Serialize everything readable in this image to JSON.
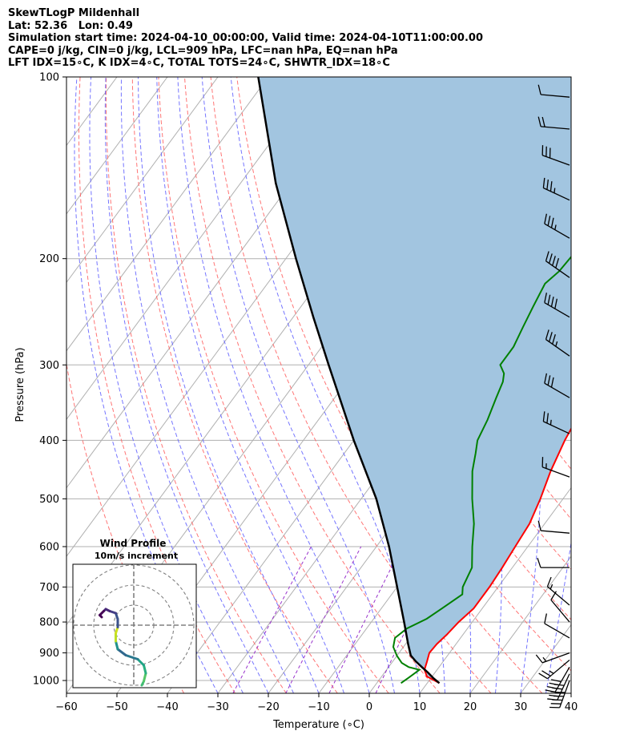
{
  "title_lines": [
    "SkewTLogP Mildenhall",
    "Lat: 52.36   Lon: 0.49",
    "Simulation start time: 2024-04-10_00:00:00, Valid time: 2024-04-10T11:00:00.00",
    "CAPE=0 j/kg, CIN=0 j/kg, LCL=909 hPa, LFC=nan hPa, EQ=nan hPa",
    "LFT IDX=15∘C, K IDX=4∘C, TOTAL TOTS=24∘C, SHWTR_IDX=18∘C"
  ],
  "chart_data": {
    "type": "line",
    "subtype": "skew-T log-P",
    "xlabel": "Temperature (∘C)",
    "ylabel": "Pressure (hPa)",
    "xlim": [
      -60,
      40
    ],
    "ylim": [
      1050,
      100
    ],
    "y_scale": "log",
    "x_ticks": [
      "−60",
      "−50",
      "−40",
      "−30",
      "−20",
      "−10",
      "0",
      "10",
      "20",
      "30",
      "40"
    ],
    "y_ticks": [
      "100",
      "200",
      "300",
      "400",
      "500",
      "600",
      "700",
      "800",
      "900",
      "1000"
    ],
    "y_tick_values": [
      100,
      200,
      300,
      400,
      500,
      600,
      700,
      800,
      900,
      1000
    ],
    "grid": true,
    "colors": {
      "temperature": "#ff0000",
      "dewpoint": "#008000",
      "parcel": "#000000",
      "shade": "#a2c5e0",
      "dry_adiabat": "#ff6666",
      "moist_adiabat": "#6666ff",
      "mixing_ratio": "#9933cc",
      "isotherm": "#b0b0b0"
    },
    "series": [
      {
        "key": "temperature",
        "points": [
          [
            1010,
            12.4
          ],
          [
            985,
            9
          ],
          [
            960,
            7.5
          ],
          [
            930,
            6.8
          ],
          [
            900,
            6
          ],
          [
            870,
            6.2
          ],
          [
            840,
            6.8
          ],
          [
            800,
            7.3
          ],
          [
            760,
            8.3
          ],
          [
            700,
            8.3
          ],
          [
            650,
            8
          ],
          [
            600,
            7.5
          ],
          [
            550,
            7
          ],
          [
            500,
            5.5
          ],
          [
            450,
            3.5
          ],
          [
            400,
            1.8
          ],
          [
            350,
            0.5
          ],
          [
            320,
            -0.6
          ],
          [
            300,
            -1.8
          ],
          [
            270,
            -4.5
          ],
          [
            250,
            -5.8
          ],
          [
            235,
            -6.7
          ],
          [
            220,
            -7.3
          ],
          [
            200,
            -8
          ],
          [
            195,
            -9
          ],
          [
            190,
            -11
          ],
          [
            180,
            -12.5
          ],
          [
            170,
            -15
          ],
          [
            160,
            -18
          ],
          [
            150,
            -21
          ],
          [
            140,
            -25
          ],
          [
            125,
            -33
          ],
          [
            110,
            -40
          ],
          [
            100,
            -45
          ]
        ]
      },
      {
        "key": "dewpoint",
        "points": [
          [
            1010,
            4.8
          ],
          [
            990,
            5.5
          ],
          [
            960,
            6.5
          ],
          [
            950,
            4
          ],
          [
            935,
            2
          ],
          [
            910,
            0
          ],
          [
            880,
            -2
          ],
          [
            850,
            -3
          ],
          [
            820,
            -2
          ],
          [
            790,
            0.5
          ],
          [
            760,
            2
          ],
          [
            720,
            4
          ],
          [
            700,
            3
          ],
          [
            650,
            2
          ],
          [
            600,
            -1
          ],
          [
            550,
            -4
          ],
          [
            500,
            -8
          ],
          [
            450,
            -12
          ],
          [
            420,
            -14
          ],
          [
            400,
            -15.5
          ],
          [
            370,
            -16.5
          ],
          [
            340,
            -18
          ],
          [
            320,
            -19
          ],
          [
            310,
            -20
          ],
          [
            300,
            -22
          ],
          [
            280,
            -22
          ],
          [
            260,
            -23
          ],
          [
            240,
            -24
          ],
          [
            220,
            -25
          ],
          [
            210,
            -24
          ],
          [
            190,
            -23.5
          ],
          [
            175,
            -22
          ],
          [
            162,
            -21.5
          ],
          [
            155,
            -23
          ],
          [
            140,
            -29
          ],
          [
            125,
            -34
          ],
          [
            112,
            -39
          ],
          [
            100,
            -45
          ]
        ]
      },
      {
        "key": "parcel",
        "points": [
          [
            1010,
            12.4
          ],
          [
            990,
            10.4
          ],
          [
            970,
            8.6
          ],
          [
            950,
            6.6
          ],
          [
            930,
            4.6
          ],
          [
            909,
            2.7
          ],
          [
            870,
            0.5
          ],
          [
            800,
            -3.5
          ],
          [
            700,
            -10
          ],
          [
            600,
            -17.5
          ],
          [
            500,
            -27
          ],
          [
            400,
            -40
          ],
          [
            300,
            -56
          ],
          [
            250,
            -66
          ],
          [
            200,
            -78
          ],
          [
            150,
            -93
          ],
          [
            100,
            -112
          ]
        ]
      }
    ],
    "wind_barbs": [
      {
        "p": 1000,
        "speed_kt": 50,
        "dir_deg": 200
      },
      {
        "p": 975,
        "speed_kt": 50,
        "dir_deg": 205
      },
      {
        "p": 950,
        "speed_kt": 40,
        "dir_deg": 210
      },
      {
        "p": 925,
        "speed_kt": 25,
        "dir_deg": 230
      },
      {
        "p": 900,
        "speed_kt": 15,
        "dir_deg": 250
      },
      {
        "p": 850,
        "speed_kt": 10,
        "dir_deg": 300
      },
      {
        "p": 800,
        "speed_kt": 10,
        "dir_deg": 320
      },
      {
        "p": 750,
        "speed_kt": 15,
        "dir_deg": 310
      },
      {
        "p": 650,
        "speed_kt": 10,
        "dir_deg": 270
      },
      {
        "p": 570,
        "speed_kt": 10,
        "dir_deg": 275
      },
      {
        "p": 460,
        "speed_kt": 15,
        "dir_deg": 290
      },
      {
        "p": 390,
        "speed_kt": 25,
        "dir_deg": 295
      },
      {
        "p": 340,
        "speed_kt": 30,
        "dir_deg": 300
      },
      {
        "p": 290,
        "speed_kt": 35,
        "dir_deg": 305
      },
      {
        "p": 250,
        "speed_kt": 40,
        "dir_deg": 300
      },
      {
        "p": 215,
        "speed_kt": 40,
        "dir_deg": 305
      },
      {
        "p": 185,
        "speed_kt": 35,
        "dir_deg": 300
      },
      {
        "p": 160,
        "speed_kt": 35,
        "dir_deg": 295
      },
      {
        "p": 140,
        "speed_kt": 30,
        "dir_deg": 290
      },
      {
        "p": 122,
        "speed_kt": 20,
        "dir_deg": 275
      },
      {
        "p": 108,
        "speed_kt": 10,
        "dir_deg": 275
      }
    ],
    "inset": {
      "title_line1": "Wind Profile",
      "title_line2": "10m/s increment",
      "rings_ms": [
        10,
        20,
        30
      ],
      "hodograph_uv": [
        [
          4,
          -30
        ],
        [
          5,
          -28
        ],
        [
          6,
          -24
        ],
        [
          5,
          -20
        ],
        [
          2,
          -17
        ],
        [
          -4,
          -15
        ],
        [
          -8,
          -12
        ],
        [
          -9,
          -8
        ],
        [
          -9,
          -4
        ],
        [
          -8,
          -1
        ],
        [
          -8,
          3
        ],
        [
          -9,
          6
        ],
        [
          -12,
          7
        ],
        [
          -14,
          8
        ],
        [
          -15,
          7
        ],
        [
          -17,
          5
        ],
        [
          -16,
          4
        ]
      ]
    }
  }
}
